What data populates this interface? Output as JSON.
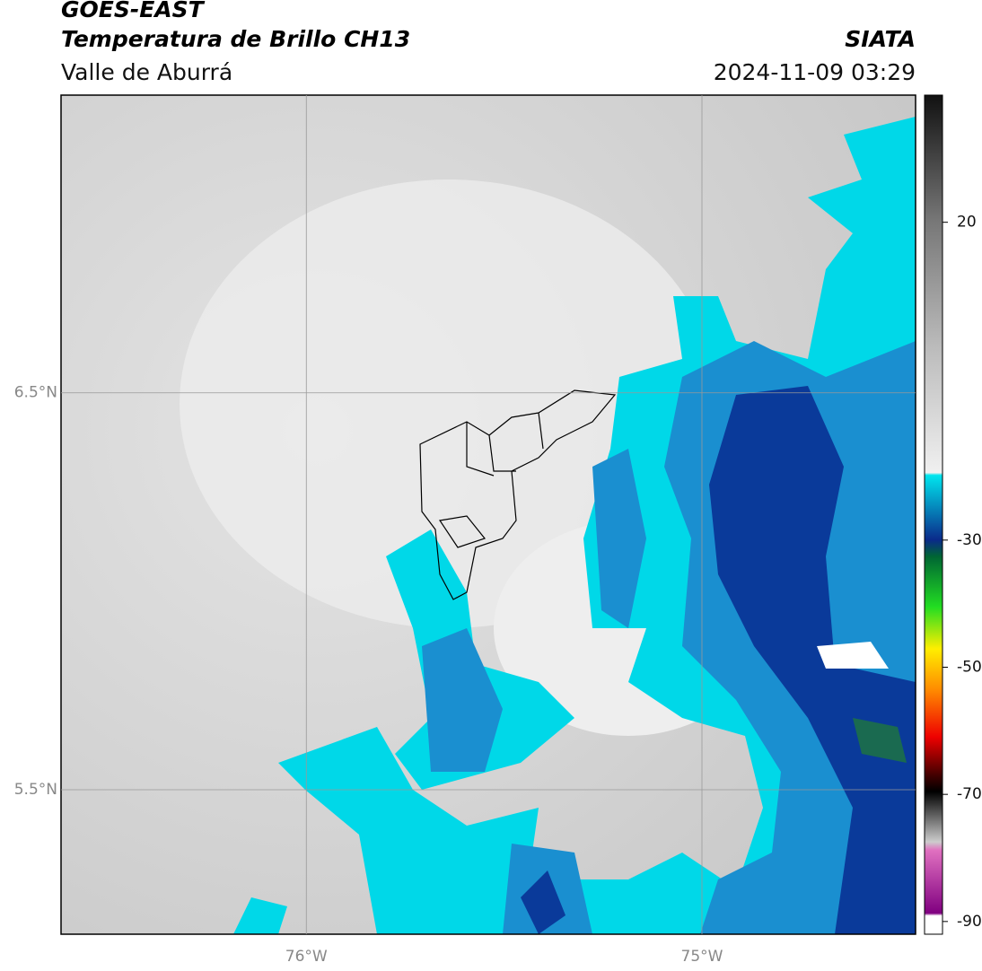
{
  "header": {
    "title": "GOES-EAST",
    "subtitle": "Temperatura de Brillo CH13",
    "region": "Valle de Aburrá",
    "source": "SIATA",
    "timestamp": "2024-11-09 03:29"
  },
  "map": {
    "latlim": [
      5.136,
      7.25
    ],
    "lonlim": [
      -76.62,
      -74.46
    ],
    "latticks": [
      {
        "value": 6.5,
        "label": "6.5°N"
      },
      {
        "value": 5.5,
        "label": "5.5°N"
      }
    ],
    "lonticks": [
      {
        "value": -76,
        "label": "76°W"
      },
      {
        "value": -75,
        "label": "75°W"
      }
    ],
    "grid": true
  },
  "colorbar": {
    "lim": [
      -92,
      40
    ],
    "ticks": [
      20,
      -30,
      -50,
      -70,
      -90
    ]
  }
}
